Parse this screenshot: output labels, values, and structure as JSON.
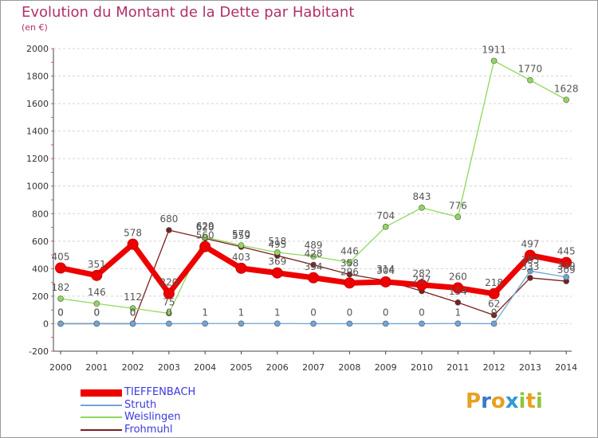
{
  "title": "Evolution du Montant de la Dette par Habitant",
  "subtitle": "(en €)",
  "logo": {
    "text": "Proxiti",
    "letters": [
      "P",
      "r",
      "o",
      "x",
      "i",
      "t",
      "i"
    ],
    "colors": [
      "#e8a020",
      "#3a78c8",
      "#e8a020",
      "#2e9ad8",
      "#8cc63f",
      "#e8a020",
      "#8cc63f"
    ]
  },
  "chart_data": {
    "type": "line",
    "title": "Evolution du Montant de la Dette par Habitant",
    "subtitle": "(en €)",
    "ylim": [
      -200,
      2000
    ],
    "y_ticks": [
      -200,
      0,
      200,
      400,
      600,
      800,
      1000,
      1200,
      1400,
      1600,
      1800,
      2000
    ],
    "x": [
      "2000",
      "2001",
      "2002",
      "2003",
      "2004",
      "2005",
      "2006",
      "2007",
      "2008",
      "2009",
      "2010",
      "2011",
      "2012",
      "2013",
      "2014"
    ],
    "legend_position": "bottom-left",
    "grid": "horizontal",
    "series": [
      {
        "name": "TIEFFENBACH",
        "color": "#ee0000",
        "values": [
          405,
          351,
          578,
          220,
          560,
          403,
          369,
          334,
          296,
          304,
          282,
          260,
          218,
          497,
          445
        ]
      },
      {
        "name": "Struth",
        "color": "#6fa5d6",
        "values": [
          0,
          0,
          0,
          0,
          1,
          1,
          1,
          0,
          0,
          0,
          0,
          1,
          0,
          383,
          339
        ]
      },
      {
        "name": "Weislingen",
        "color": "#8fd85a",
        "values": [
          182,
          146,
          112,
          75,
          629,
          570,
          518,
          489,
          446,
          704,
          843,
          776,
          1911,
          1770,
          1628
        ]
      },
      {
        "name": "Frohmuhl",
        "color": "#7a1e1e",
        "values": [
          0,
          0,
          0,
          680,
          620,
          559,
          495,
          428,
          358,
          314,
          237,
          154,
          62,
          333,
          309
        ]
      }
    ]
  }
}
